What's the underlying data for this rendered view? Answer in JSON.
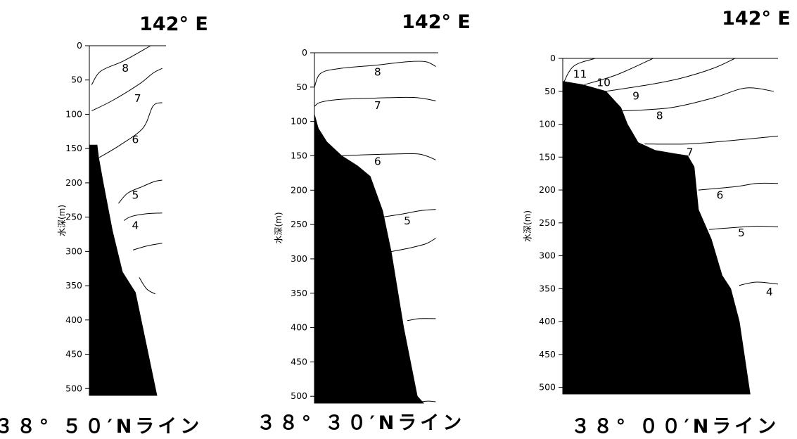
{
  "chart_data": [
    {
      "type": "depth-section",
      "title": "142° E",
      "line_name": "３８° ５０′Nライン",
      "ylabel": "水深(m)",
      "ylim": [
        0,
        510
      ],
      "yticks": [
        "0",
        "50",
        "100",
        "150",
        "200",
        "250",
        "300",
        "350",
        "400",
        "450",
        "500"
      ],
      "x_range": [
        0,
        1
      ],
      "seabed": [
        [
          0.1,
          145
        ],
        [
          0.12,
          163
        ],
        [
          0.18,
          200
        ],
        [
          0.3,
          270
        ],
        [
          0.43,
          330
        ],
        [
          0.6,
          360
        ],
        [
          0.88,
          510
        ]
      ],
      "contours": [
        {
          "label": "8",
          "label_at": [
            0.47,
            33
          ],
          "points": [
            [
              0.03,
              57
            ],
            [
              0.15,
              37
            ],
            [
              0.45,
              22
            ],
            [
              0.8,
              0
            ]
          ]
        },
        {
          "label": "7",
          "label_at": [
            0.63,
            77
          ],
          "points": [
            [
              0.03,
              95
            ],
            [
              0.3,
              80
            ],
            [
              0.65,
              56
            ],
            [
              0.83,
              40
            ],
            [
              0.95,
              33
            ]
          ]
        },
        {
          "label": "6",
          "label_at": [
            0.6,
            137
          ],
          "points": [
            [
              0.13,
              163
            ],
            [
              0.4,
              145
            ],
            [
              0.7,
              120
            ],
            [
              0.83,
              88
            ],
            [
              0.95,
              83
            ]
          ]
        },
        {
          "label": "5",
          "label_at": [
            0.6,
            218
          ],
          "points": [
            [
              0.38,
              230
            ],
            [
              0.5,
              215
            ],
            [
              0.7,
              205
            ],
            [
              0.85,
              198
            ],
            [
              0.95,
              196
            ]
          ]
        },
        {
          "label": "4",
          "label_at": [
            0.6,
            262
          ],
          "points": [
            [
              0.45,
              255
            ],
            [
              0.55,
              249
            ],
            [
              0.75,
              245
            ],
            [
              0.95,
              244
            ]
          ]
        },
        {
          "label": "",
          "label_at": null,
          "points": [
            [
              0.57,
              298
            ],
            [
              0.75,
              292
            ],
            [
              0.95,
              288
            ]
          ]
        },
        {
          "label": "",
          "label_at": null,
          "points": [
            [
              0.65,
              338
            ],
            [
              0.75,
              355
            ],
            [
              0.86,
              362
            ]
          ]
        }
      ]
    },
    {
      "type": "depth-section",
      "title": "142° E",
      "line_name": "３８° ３０′Nライン",
      "ylabel": "水深(m)",
      "ylim": [
        0,
        510
      ],
      "yticks": [
        "0",
        "50",
        "100",
        "150",
        "200",
        "250",
        "300",
        "350",
        "400",
        "450",
        "500"
      ],
      "x_range": [
        0,
        1
      ],
      "seabed": [
        [
          0.0,
          90
        ],
        [
          0.03,
          110
        ],
        [
          0.1,
          130
        ],
        [
          0.22,
          150
        ],
        [
          0.35,
          165
        ],
        [
          0.45,
          180
        ],
        [
          0.55,
          230
        ],
        [
          0.62,
          290
        ],
        [
          0.72,
          400
        ],
        [
          0.83,
          500
        ],
        [
          0.88,
          510
        ]
      ],
      "contours": [
        {
          "label": "8",
          "label_at": [
            0.51,
            28
          ],
          "points": [
            [
              0.0,
              50
            ],
            [
              0.05,
              30
            ],
            [
              0.2,
              23
            ],
            [
              0.5,
              18
            ],
            [
              0.75,
              13
            ],
            [
              0.9,
              13
            ],
            [
              0.98,
              20
            ]
          ]
        },
        {
          "label": "7",
          "label_at": [
            0.51,
            77
          ],
          "points": [
            [
              0.0,
              78
            ],
            [
              0.05,
              72
            ],
            [
              0.2,
              68
            ],
            [
              0.5,
              66
            ],
            [
              0.8,
              65
            ],
            [
              0.98,
              70
            ]
          ]
        },
        {
          "label": "6",
          "label_at": [
            0.51,
            158
          ],
          "points": [
            [
              0.2,
              150
            ],
            [
              0.5,
              148
            ],
            [
              0.8,
              147
            ],
            [
              0.9,
              150
            ],
            [
              0.98,
              156
            ]
          ]
        },
        {
          "label": "5",
          "label_at": [
            0.75,
            245
          ],
          "points": [
            [
              0.52,
              240
            ],
            [
              0.7,
              235
            ],
            [
              0.85,
              230
            ],
            [
              0.98,
              228
            ]
          ]
        },
        {
          "label": "",
          "label_at": null,
          "points": [
            [
              0.6,
              290
            ],
            [
              0.75,
              285
            ],
            [
              0.9,
              278
            ],
            [
              0.98,
              270
            ]
          ]
        },
        {
          "label": "",
          "label_at": null,
          "points": [
            [
              0.75,
              390
            ],
            [
              0.85,
              387
            ],
            [
              0.98,
              387
            ]
          ]
        },
        {
          "label": "",
          "label_at": null,
          "points": [
            [
              0.86,
              508
            ],
            [
              0.92,
              507
            ],
            [
              0.98,
              508
            ]
          ]
        }
      ]
    },
    {
      "type": "depth-section",
      "title": "142° E",
      "line_name": "３８° ００′Nライン",
      "ylabel": "水深(m)",
      "ylim": [
        0,
        510
      ],
      "yticks": [
        "0",
        "50",
        "100",
        "150",
        "200",
        "250",
        "300",
        "350",
        "400",
        "450",
        "500"
      ],
      "x_range": [
        0,
        1
      ],
      "seabed": [
        [
          0.0,
          35
        ],
        [
          0.09,
          40
        ],
        [
          0.2,
          50
        ],
        [
          0.27,
          75
        ],
        [
          0.3,
          100
        ],
        [
          0.35,
          128
        ],
        [
          0.43,
          140
        ],
        [
          0.52,
          145
        ],
        [
          0.58,
          148
        ],
        [
          0.61,
          165
        ],
        [
          0.63,
          230
        ],
        [
          0.69,
          275
        ],
        [
          0.74,
          330
        ],
        [
          0.78,
          350
        ],
        [
          0.82,
          400
        ],
        [
          0.87,
          510
        ]
      ],
      "contours": [
        {
          "label": "11",
          "label_at": [
            0.08,
            24
          ],
          "points": [
            [
              0.0,
              40
            ],
            [
              0.05,
              12
            ],
            [
              0.15,
              0
            ]
          ]
        },
        {
          "label": "10",
          "label_at": [
            0.19,
            37
          ],
          "points": [
            [
              0.1,
              40
            ],
            [
              0.25,
              25
            ],
            [
              0.42,
              0
            ]
          ]
        },
        {
          "label": "9",
          "label_at": [
            0.34,
            57
          ],
          "points": [
            [
              0.2,
              50
            ],
            [
              0.4,
              40
            ],
            [
              0.55,
              30
            ],
            [
              0.7,
              15
            ],
            [
              0.8,
              0
            ]
          ]
        },
        {
          "label": "8",
          "label_at": [
            0.45,
            87
          ],
          "points": [
            [
              0.27,
              80
            ],
            [
              0.5,
              75
            ],
            [
              0.7,
              60
            ],
            [
              0.85,
              45
            ],
            [
              0.98,
              50
            ]
          ]
        },
        {
          "label": "7",
          "label_at": [
            0.59,
            143
          ],
          "points": [
            [
              0.38,
              130
            ],
            [
              0.58,
              130
            ],
            [
              0.78,
              125
            ],
            [
              1.0,
              118
            ]
          ]
        },
        {
          "label": "6",
          "label_at": [
            0.73,
            208
          ],
          "points": [
            [
              0.63,
              200
            ],
            [
              0.8,
              195
            ],
            [
              0.9,
              190
            ],
            [
              1.0,
              190
            ]
          ]
        },
        {
          "label": "5",
          "label_at": [
            0.83,
            265
          ],
          "points": [
            [
              0.68,
              260
            ],
            [
              0.8,
              257
            ],
            [
              0.9,
              255
            ],
            [
              1.0,
              256
            ]
          ]
        },
        {
          "label": "4",
          "label_at": [
            0.96,
            355
          ],
          "points": [
            [
              0.82,
              345
            ],
            [
              0.9,
              340
            ],
            [
              1.0,
              343
            ]
          ]
        }
      ]
    }
  ]
}
